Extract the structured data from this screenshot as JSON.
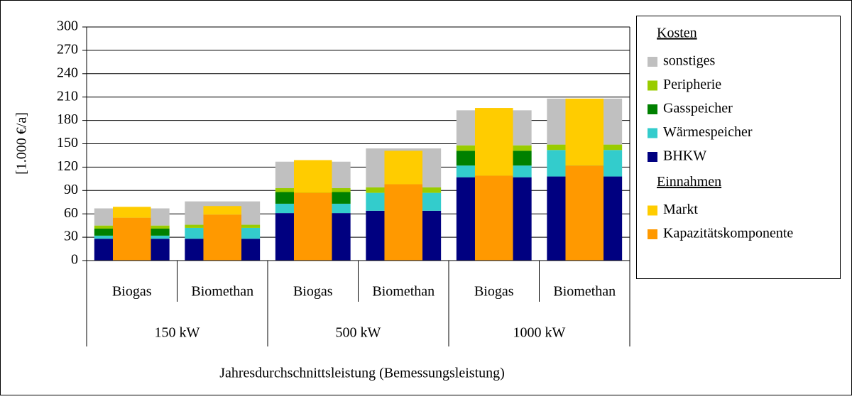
{
  "chart_data": {
    "type": "grouped_stacked_bar",
    "y_label": "[1.000 €/a]",
    "x_label": "Jahresdurchschnittsleistung (Bemessungsleistung)",
    "categories": [
      "Biogas",
      "Biomethan",
      "Biogas",
      "Biomethan",
      "Biogas",
      "Biomethan"
    ],
    "groups": [
      "150 kW",
      "500 kW",
      "1000 kW"
    ],
    "stacks": [
      {
        "key": "cost",
        "name": "Kosten"
      },
      {
        "key": "revenue",
        "name": "Einnahmen"
      }
    ],
    "series": [
      {
        "name": "BHKW",
        "stack": "cost",
        "color": "#000080",
        "values": [
          28,
          28,
          61,
          64,
          107,
          108
        ]
      },
      {
        "name": "Wärmespeicher",
        "stack": "cost",
        "color": "#33cccc",
        "values": [
          4,
          14,
          12,
          23,
          15,
          34
        ]
      },
      {
        "name": "Gasspeicher",
        "stack": "cost",
        "color": "#008000",
        "values": [
          9,
          0,
          15,
          0,
          19,
          0
        ]
      },
      {
        "name": "Peripherie",
        "stack": "cost",
        "color": "#99cc00",
        "values": [
          4,
          4,
          5,
          7,
          7,
          7
        ]
      },
      {
        "name": "sonstiges",
        "stack": "cost",
        "color": "#c0c0c0",
        "values": [
          22,
          30,
          34,
          50,
          45,
          59
        ]
      },
      {
        "name": "Kapazitätskomponente",
        "stack": "revenue",
        "color": "#ff9900",
        "values": [
          55,
          59,
          87,
          98,
          109,
          122
        ]
      },
      {
        "name": "Markt",
        "stack": "revenue",
        "color": "#ffcc00",
        "values": [
          14,
          11,
          42,
          43,
          87,
          86
        ]
      }
    ],
    "ylim": [
      0,
      300
    ],
    "yticks": [
      0,
      30,
      60,
      90,
      120,
      150,
      180,
      210,
      240,
      270,
      300
    ],
    "grid": true
  }
}
